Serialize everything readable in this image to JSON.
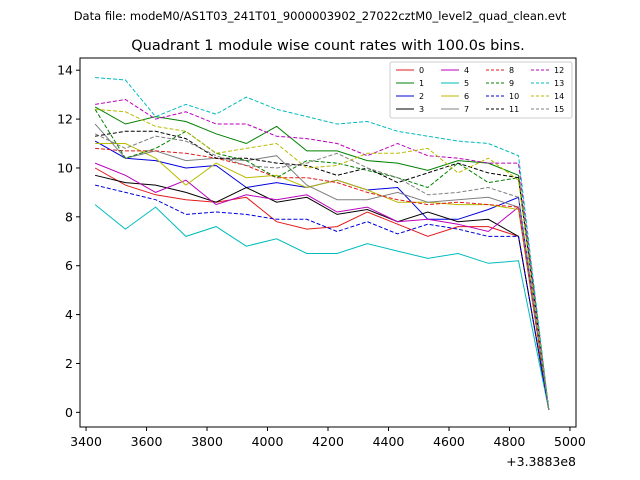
{
  "header": {
    "data_file": "Data file: modeM0/AS1T03_241T01_9000003902_27022cztM0_level2_quad_clean.evt"
  },
  "chart_data": {
    "type": "line",
    "title": "Quadrant 1 module wise count rates with 100.0s bins.",
    "xlabel": "",
    "ylabel": "",
    "x_offset_label": "+3.3883e8",
    "xlim": [
      3380,
      5020
    ],
    "ylim": [
      -0.6,
      14.5
    ],
    "xticks": [
      3400,
      3600,
      3800,
      4000,
      4200,
      4400,
      4600,
      4800,
      5000
    ],
    "yticks": [
      0,
      2,
      4,
      6,
      8,
      10,
      12,
      14
    ],
    "grid": false,
    "legend_position": "top-right",
    "x": [
      3430,
      3530,
      3630,
      3730,
      3830,
      3930,
      4030,
      4130,
      4230,
      4330,
      4430,
      4530,
      4630,
      4730,
      4830,
      4930
    ],
    "series": [
      {
        "name": "0",
        "color": "#e41a1c",
        "dashed": false,
        "values": [
          10.0,
          9.3,
          8.9,
          8.7,
          8.6,
          8.8,
          7.8,
          7.5,
          7.6,
          8.2,
          7.7,
          7.2,
          7.6,
          7.6,
          7.2,
          0.1
        ]
      },
      {
        "name": "1",
        "color": "#008000",
        "dashed": false,
        "values": [
          12.5,
          11.8,
          12.1,
          11.9,
          11.4,
          11.0,
          11.7,
          10.7,
          10.7,
          10.3,
          10.2,
          9.9,
          10.3,
          10.2,
          9.7,
          0.1
        ]
      },
      {
        "name": "2",
        "color": "#0000dd",
        "dashed": false,
        "values": [
          11.1,
          10.4,
          10.3,
          10.0,
          10.1,
          9.2,
          9.4,
          9.2,
          9.5,
          9.1,
          9.2,
          7.9,
          7.9,
          8.3,
          8.8,
          0.1
        ]
      },
      {
        "name": "3",
        "color": "#000000",
        "dashed": false,
        "values": [
          9.7,
          9.4,
          9.3,
          9.0,
          8.6,
          9.2,
          8.6,
          8.8,
          8.1,
          8.3,
          7.8,
          8.2,
          7.8,
          7.9,
          7.2,
          0.1
        ]
      },
      {
        "name": "4",
        "color": "#bb00bb",
        "dashed": false,
        "values": [
          10.2,
          9.7,
          9.0,
          9.5,
          8.5,
          8.9,
          8.7,
          8.9,
          8.2,
          8.4,
          7.8,
          7.9,
          7.7,
          7.4,
          8.4,
          0.1
        ]
      },
      {
        "name": "5",
        "color": "#00bbbb",
        "dashed": false,
        "values": [
          8.5,
          7.5,
          8.4,
          7.2,
          7.6,
          6.8,
          7.1,
          6.5,
          6.5,
          6.9,
          6.6,
          6.3,
          6.5,
          6.1,
          6.2,
          0.1
        ]
      },
      {
        "name": "6",
        "color": "#bbbb00",
        "dashed": false,
        "values": [
          11.0,
          11.0,
          10.4,
          9.3,
          10.2,
          9.6,
          9.7,
          9.2,
          9.5,
          9.1,
          8.6,
          8.6,
          8.5,
          8.5,
          8.3,
          0.1
        ]
      },
      {
        "name": "7",
        "color": "#808080",
        "dashed": false,
        "values": [
          11.8,
          10.4,
          10.7,
          10.3,
          10.4,
          10.3,
          10.5,
          9.3,
          8.7,
          8.7,
          9.0,
          8.6,
          8.7,
          8.8,
          8.4,
          0.1
        ]
      },
      {
        "name": "8",
        "color": "#e41a1c",
        "dashed": true,
        "values": [
          10.8,
          10.7,
          10.7,
          10.6,
          10.4,
          10.1,
          9.6,
          9.6,
          9.4,
          9.0,
          8.7,
          8.5,
          8.6,
          8.5,
          8.4,
          0.1
        ]
      },
      {
        "name": "9",
        "color": "#008000",
        "dashed": true,
        "values": [
          12.4,
          10.4,
          10.8,
          11.5,
          10.6,
          10.3,
          9.6,
          10.3,
          10.2,
          9.9,
          9.6,
          9.2,
          10.2,
          9.4,
          9.6,
          0.1
        ]
      },
      {
        "name": "10",
        "color": "#0000dd",
        "dashed": true,
        "values": [
          9.3,
          9.0,
          8.7,
          8.1,
          8.2,
          8.1,
          7.9,
          7.9,
          7.4,
          7.8,
          7.3,
          7.7,
          7.5,
          7.2,
          7.2,
          0.1
        ]
      },
      {
        "name": "11",
        "color": "#000000",
        "dashed": true,
        "values": [
          11.3,
          11.5,
          11.5,
          11.2,
          10.4,
          10.4,
          10.2,
          10.1,
          9.7,
          10.0,
          9.4,
          9.8,
          10.2,
          9.8,
          9.6,
          0.1
        ]
      },
      {
        "name": "12",
        "color": "#bb00bb",
        "dashed": true,
        "values": [
          12.6,
          12.8,
          12.0,
          12.3,
          11.8,
          11.8,
          11.3,
          11.2,
          11.0,
          10.5,
          11.0,
          10.5,
          10.4,
          10.2,
          10.2,
          0.1
        ]
      },
      {
        "name": "13",
        "color": "#00bbbb",
        "dashed": true,
        "values": [
          13.7,
          13.6,
          12.1,
          12.6,
          12.2,
          12.9,
          12.4,
          12.1,
          11.8,
          11.9,
          11.5,
          11.3,
          11.1,
          11.0,
          10.5,
          0.1
        ]
      },
      {
        "name": "14",
        "color": "#bbbb00",
        "dashed": true,
        "values": [
          12.4,
          12.3,
          11.7,
          11.5,
          10.6,
          10.8,
          11.0,
          10.0,
          10.1,
          10.6,
          10.6,
          10.8,
          9.8,
          10.4,
          9.5,
          0.1
        ]
      },
      {
        "name": "15",
        "color": "#808080",
        "dashed": true,
        "values": [
          11.4,
          10.8,
          11.3,
          11.1,
          10.5,
          10.1,
          10.0,
          10.2,
          10.6,
          10.0,
          9.6,
          8.9,
          9.0,
          9.2,
          8.8,
          0.1
        ]
      }
    ]
  }
}
